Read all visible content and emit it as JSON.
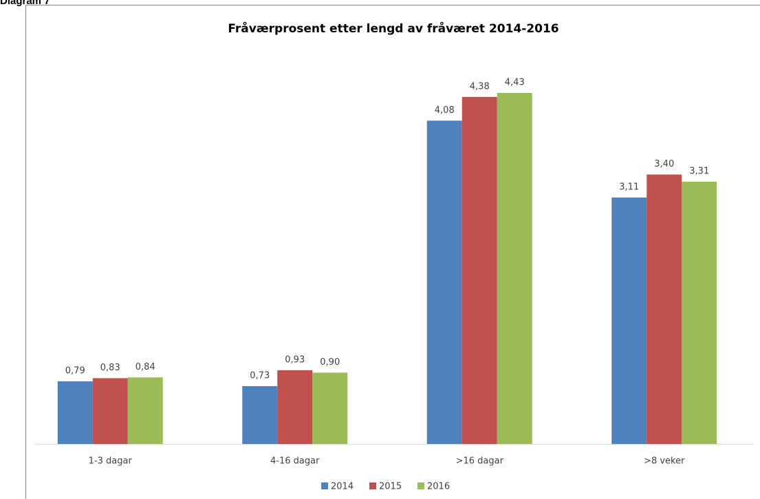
{
  "diagram_label": "Diagram 7",
  "chart_data": {
    "type": "bar",
    "title": "Fråværprosent etter lengd av fråværet 2014-2016",
    "categories": [
      "1-3 dagar",
      "4-16 dagar",
      ">16 dagar",
      ">8 veker"
    ],
    "series": [
      {
        "name": "2014",
        "color": "#4f81bd",
        "values": [
          0.79,
          0.73,
          4.08,
          3.11
        ],
        "value_labels": [
          "0,79",
          "0,73",
          "4,08",
          "3,11"
        ]
      },
      {
        "name": "2015",
        "color": "#c0504d",
        "values": [
          0.83,
          0.93,
          4.38,
          3.4
        ],
        "value_labels": [
          "0,83",
          "0,93",
          "4,38",
          "3,40"
        ]
      },
      {
        "name": "2016",
        "color": "#9bbb59",
        "values": [
          0.84,
          0.9,
          4.43,
          3.31
        ],
        "value_labels": [
          "0,84",
          "0,90",
          "4,43",
          "3,31"
        ]
      }
    ],
    "legend": "bottom"
  }
}
